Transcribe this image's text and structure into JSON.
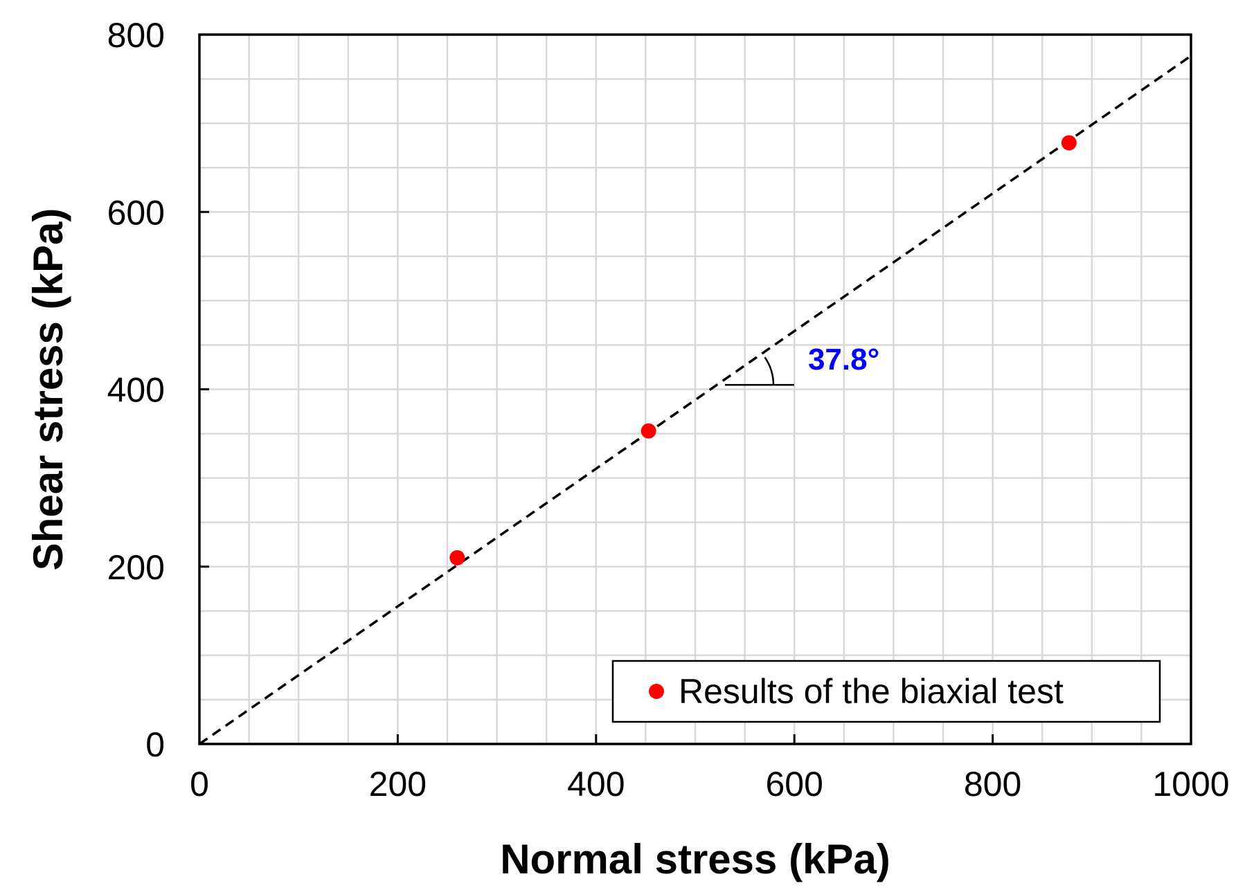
{
  "chart_data": {
    "type": "scatter",
    "xlabel": "Normal stress (kPa)",
    "ylabel": "Shear stress (kPa)",
    "xlim": [
      0,
      1000
    ],
    "ylim": [
      0,
      800
    ],
    "x_ticks": [
      "0",
      "200",
      "400",
      "600",
      "800",
      "1000"
    ],
    "y_ticks": [
      "0",
      "200",
      "400",
      "600",
      "800"
    ],
    "x_tick_values": [
      0,
      200,
      400,
      600,
      800,
      1000
    ],
    "y_tick_values": [
      0,
      200,
      400,
      600,
      800
    ],
    "grid": true,
    "minor_grid_step": 50,
    "series": [
      {
        "name": "Results of the biaxial test",
        "marker_color": "#ff0000",
        "points": [
          {
            "x": 260,
            "y": 210
          },
          {
            "x": 453,
            "y": 353
          },
          {
            "x": 877,
            "y": 678
          }
        ]
      }
    ],
    "fit_line": {
      "style": "dashed",
      "color": "#000000",
      "x": [
        0,
        1000
      ],
      "y": [
        0,
        776
      ]
    },
    "annotation": {
      "text": "37.8°",
      "color": "#0000ff",
      "vertex": {
        "x": 530,
        "y": 405
      }
    },
    "legend_position": "bottom-right"
  }
}
